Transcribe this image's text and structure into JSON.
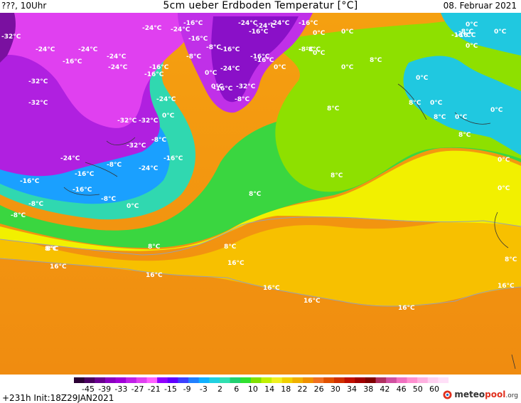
{
  "header": {
    "left": "???, 10Uhr",
    "title": "5cm ueber Erdboden Temperatur [°C]",
    "date": "08. Februar 2021"
  },
  "footer": {
    "init": "+231h  Init:18Z29JAN2021",
    "brand_main": "meteo",
    "brand_accent": "pool",
    "brand_tld": ".org"
  },
  "legend": {
    "ticks": [
      "-45",
      "-39",
      "-33",
      "-27",
      "-21",
      "-15",
      "-9",
      "-3",
      "2",
      "6",
      "10",
      "14",
      "18",
      "22",
      "26",
      "30",
      "34",
      "38",
      "42",
      "46",
      "50",
      "60"
    ],
    "colors": [
      "#2a0033",
      "#4a0060",
      "#6a0090",
      "#8a00c0",
      "#a000d8",
      "#c020e8",
      "#e040f0",
      "#ff60ff",
      "#9000ff",
      "#6000ff",
      "#3c40ff",
      "#2080ff",
      "#10b0ff",
      "#20d0e0",
      "#30e0b0",
      "#20d070",
      "#30e030",
      "#80e000",
      "#c0f000",
      "#f0f020",
      "#f0d000",
      "#f0b000",
      "#f09000",
      "#f07020",
      "#e05000",
      "#d03000",
      "#c01000",
      "#a00000",
      "#800000",
      "#b03060",
      "#d050a0",
      "#f070c0",
      "#ff90d0",
      "#ffb0e0",
      "#ffd0f0",
      "#ffe0f8"
    ]
  },
  "labels": [
    {
      "t": "-32°C"
    },
    {
      "t": "-24°C"
    },
    {
      "t": "-24°C"
    },
    {
      "t": "-16°C"
    },
    {
      "t": "-24°C"
    },
    {
      "t": "-24°C"
    },
    {
      "t": "-16°C"
    },
    {
      "t": "-16°C"
    },
    {
      "t": "-32°C"
    },
    {
      "t": "-32°C"
    },
    {
      "t": "-16°C"
    },
    {
      "t": "-24°C"
    },
    {
      "t": "-32°C"
    },
    {
      "t": "-32°C"
    },
    {
      "t": "-32°C"
    },
    {
      "t": "-24°C"
    },
    {
      "t": "-16°C"
    },
    {
      "t": "-8°C"
    },
    {
      "t": "-16°C"
    },
    {
      "t": "-8°C"
    },
    {
      "t": "-8°C"
    },
    {
      "t": "-16°C"
    },
    {
      "t": "-8°C"
    },
    {
      "t": "-24°C"
    },
    {
      "t": "0°C"
    },
    {
      "t": "0°C"
    },
    {
      "t": "0°C"
    },
    {
      "t": "0°C"
    },
    {
      "t": "8°C"
    },
    {
      "t": "-24°C"
    },
    {
      "t": "-24°C"
    },
    {
      "t": "-16°C"
    },
    {
      "t": "-8°C"
    },
    {
      "t": "-8°C"
    },
    {
      "t": "-16°C"
    },
    {
      "t": "-16°C"
    },
    {
      "t": "-8°C"
    },
    {
      "t": "-24°C"
    },
    {
      "t": "-16°C"
    },
    {
      "t": "-24°C"
    },
    {
      "t": "-16°C"
    },
    {
      "t": "-24°C"
    },
    {
      "t": "-16°C"
    },
    {
      "t": "-16°C"
    },
    {
      "t": "-8°C"
    },
    {
      "t": "0°C"
    },
    {
      "t": "-32°C"
    },
    {
      "t": "-8°C"
    },
    {
      "t": "-24°C"
    },
    {
      "t": "-16°C"
    },
    {
      "t": "-8°C"
    },
    {
      "t": "0°C"
    },
    {
      "t": "0°C"
    },
    {
      "t": "0°C"
    },
    {
      "t": "8°C"
    },
    {
      "t": "0°C"
    },
    {
      "t": "8°C"
    },
    {
      "t": "0°C"
    },
    {
      "t": "8°C"
    },
    {
      "t": "0°C"
    },
    {
      "t": "8°C"
    },
    {
      "t": "0°C"
    },
    {
      "t": "0°C"
    },
    {
      "t": "-8°C"
    },
    {
      "t": "0°C"
    },
    {
      "t": "0°C"
    },
    {
      "t": "-16°C"
    },
    {
      "t": "0°C"
    },
    {
      "t": "-16°C"
    },
    {
      "t": "0°C"
    },
    {
      "t": "8°C"
    },
    {
      "t": "8°C"
    },
    {
      "t": "0°C"
    },
    {
      "t": "8°C"
    },
    {
      "t": "8°C"
    },
    {
      "t": "8°C"
    },
    {
      "t": "16°C"
    },
    {
      "t": "16°C"
    },
    {
      "t": "16°C"
    },
    {
      "t": "16°C"
    },
    {
      "t": "16°C"
    },
    {
      "t": "16°C"
    },
    {
      "t": "8°C"
    },
    {
      "t": "16°C"
    },
    {
      "t": "8°C"
    }
  ]
}
